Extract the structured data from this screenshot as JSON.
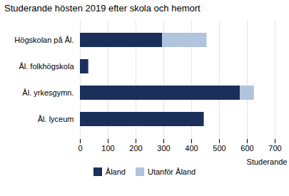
{
  "chart_data": {
    "type": "bar",
    "orientation": "horizontal",
    "stacked": true,
    "title": "Studerande hösten 2019 efter skola och hemort",
    "xlabel": "Studerande",
    "categories": [
      "Ål. lyceum",
      "Ål. yrkesgymn.",
      "Ål. folkhögskola",
      "Högskolan på Ål."
    ],
    "series": [
      {
        "name": "Åland",
        "color": "#1a2f5a",
        "values": [
          445,
          575,
          30,
          295
        ]
      },
      {
        "name": "Utanför Åland",
        "color": "#b0c4de",
        "values": [
          0,
          50,
          0,
          160
        ]
      }
    ],
    "xlim": [
      0,
      700
    ],
    "xticks": [
      0,
      100,
      200,
      300,
      400,
      500,
      600,
      700
    ],
    "grid": true,
    "legend": "bottom"
  }
}
